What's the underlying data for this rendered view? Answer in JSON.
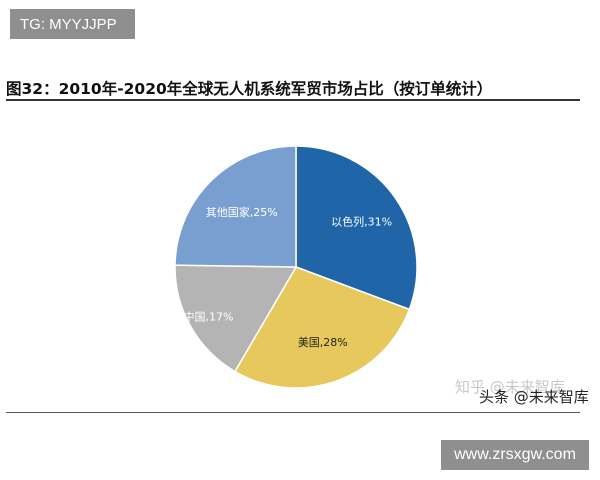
{
  "badge_text": "TG: MYYJJPP",
  "figure_title": "图32：2010年-2020年全球无人机系统军贸市场占比（按订单统计）",
  "watermark_zhihu": "知乎 @未来智库",
  "watermark_toutiao": "头条 @未来智库",
  "site_badge": "www.zrsxgw.com",
  "colors": {
    "israel": "#1f65a8",
    "usa": "#e7c85c",
    "china": "#b4b4b4",
    "others": "#789fcf"
  },
  "chart_data": {
    "type": "pie",
    "title": "图32：2010年-2020年全球无人机系统军贸市场占比（按订单统计）",
    "slices": [
      {
        "label": "以色列",
        "value": 31,
        "text": "以色列,31%",
        "color": "#1f65a8"
      },
      {
        "label": "美国",
        "value": 28,
        "text": "美国,28%",
        "color": "#e7c85c"
      },
      {
        "label": "中国",
        "value": 17,
        "text": "中国,17%",
        "color": "#b4b4b4"
      },
      {
        "label": "其他国家",
        "value": 25,
        "text": "其他国家,25%",
        "color": "#789fcf"
      }
    ],
    "start_angle_deg": 0,
    "direction": "clockwise",
    "legend": "none",
    "labels": "inside"
  }
}
